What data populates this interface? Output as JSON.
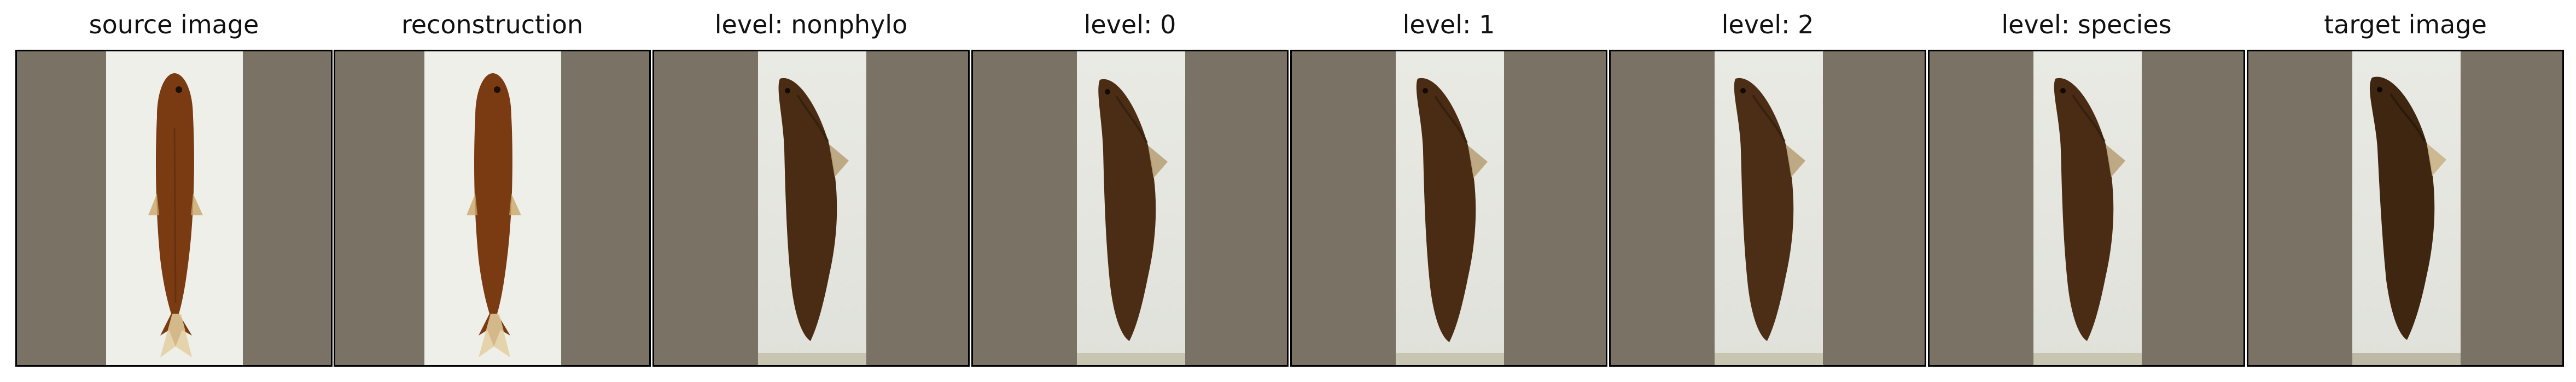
{
  "panels": [
    {
      "title": "source image",
      "variant": "slender"
    },
    {
      "title": "reconstruction",
      "variant": "slender"
    },
    {
      "title": "level: nonphylo",
      "variant": "deep"
    },
    {
      "title": "level: 0",
      "variant": "deep"
    },
    {
      "title": "level: 1",
      "variant": "deep"
    },
    {
      "title": "level: 2",
      "variant": "deep"
    },
    {
      "title": "level: species",
      "variant": "deep"
    },
    {
      "title": "target image",
      "variant": "deep"
    }
  ],
  "colors": {
    "background_pad": "#7a7265",
    "paper": "#efefea",
    "fish_slender": "#7a3a12",
    "fish_deep": "#4a2c14"
  }
}
